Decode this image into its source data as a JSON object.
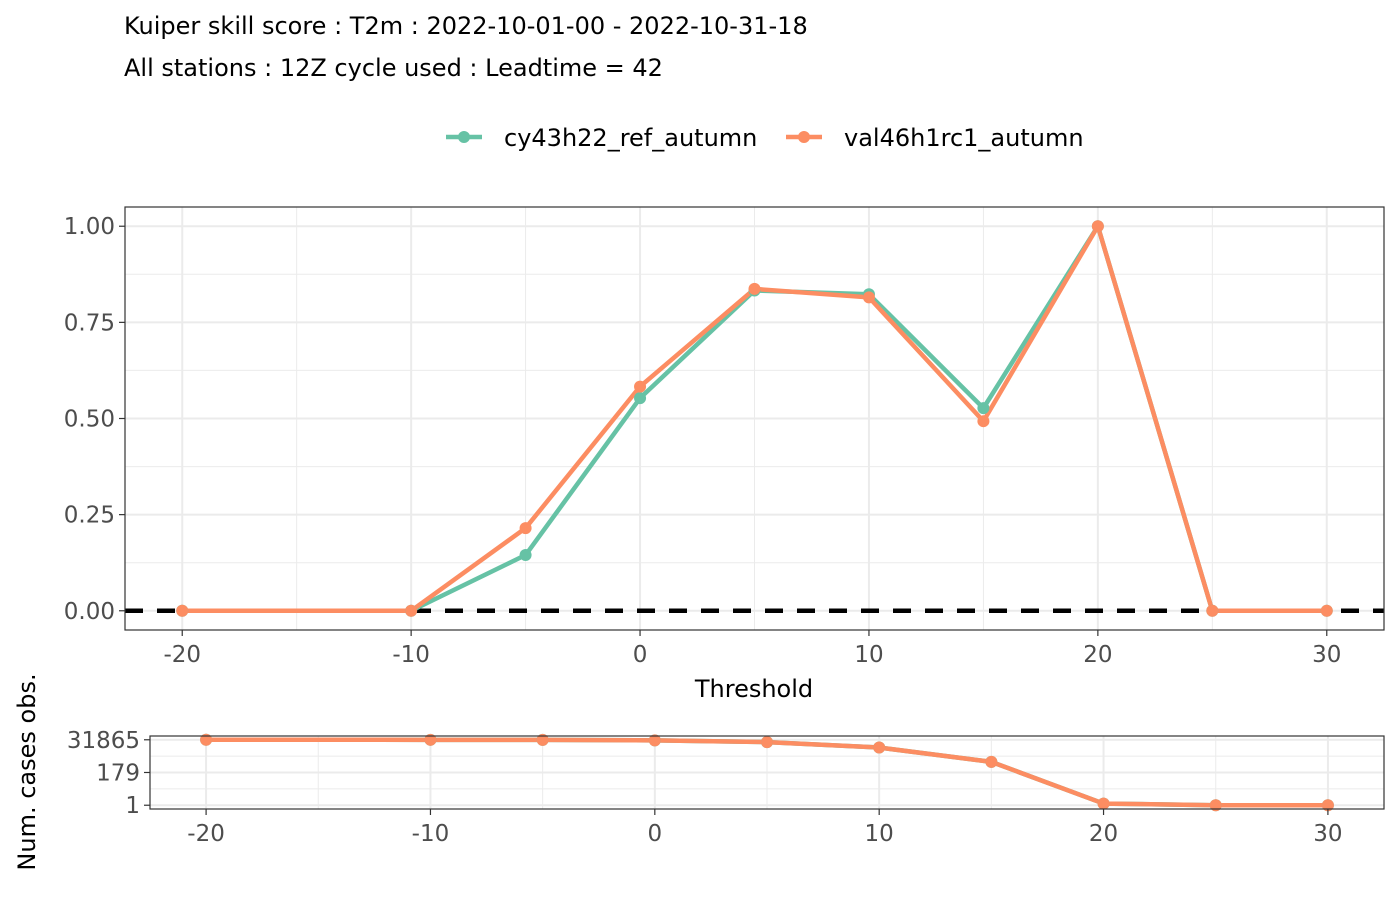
{
  "title": "Kuiper skill score : T2m : 2022-10-01-00 - 2022-10-31-18",
  "subtitle": "All stations : 12Z cycle used : Leadtime = 42",
  "colors": {
    "series_1": "#66c2a5",
    "series_2": "#fc8d62",
    "grid": "#ebebeb",
    "text": "#4d4d4d"
  },
  "chart_data": [
    {
      "type": "line",
      "xlabel": "Threshold",
      "ylabel": "",
      "xlim": [
        -22.5,
        32.5
      ],
      "ylim": [
        -0.05,
        1.05
      ],
      "xticks": [
        -20,
        -10,
        0,
        10,
        20,
        30
      ],
      "xtick_labels": [
        "-20",
        "-10",
        "0",
        "10",
        "20",
        "30"
      ],
      "yticks": [
        0,
        0.25,
        0.5,
        0.75,
        1.0
      ],
      "ytick_labels": [
        "0.00",
        "0.25",
        "0.50",
        "0.75",
        "1.00"
      ],
      "grid": true,
      "legend": "top",
      "reference_line": {
        "y": 0,
        "style": "dashed"
      },
      "x": [
        -20,
        -10,
        -5,
        0,
        5,
        10,
        15,
        20,
        25,
        30
      ],
      "series": [
        {
          "name": "cy43h22_ref_autumn",
          "values": [
            0,
            0,
            0.145,
            0.553,
            0.833,
            0.823,
            0.527,
            1.0,
            0,
            0
          ]
        },
        {
          "name": "val46h1rc1_autumn",
          "values": [
            0,
            0,
            0.215,
            0.583,
            0.837,
            0.815,
            0.493,
            1.0,
            0,
            0
          ]
        }
      ]
    },
    {
      "type": "line",
      "xlabel": "",
      "ylabel": "Num. cases obs.",
      "scale": "log",
      "xlim": [
        -22.5,
        32.5
      ],
      "xticks": [
        -20,
        -10,
        0,
        10,
        20,
        30
      ],
      "xtick_labels": [
        "-20",
        "-10",
        "0",
        "10",
        "20",
        "30"
      ],
      "yticks": [
        31865,
        179,
        1
      ],
      "ytick_labels": [
        "31865",
        "179",
        "1"
      ],
      "ylim": [
        0.55,
        58000
      ],
      "grid": true,
      "x": [
        -20,
        -10,
        -5,
        0,
        5,
        10,
        15,
        20,
        25,
        30
      ],
      "series": [
        {
          "name": "cy43h22_ref_autumn",
          "values": [
            31865,
            31700,
            31300,
            29000,
            22000,
            9300,
            960,
            1.3,
            1,
            1
          ]
        },
        {
          "name": "val46h1rc1_autumn",
          "values": [
            31865,
            31700,
            31300,
            29000,
            22000,
            9300,
            960,
            1.3,
            1,
            1
          ]
        }
      ]
    }
  ]
}
